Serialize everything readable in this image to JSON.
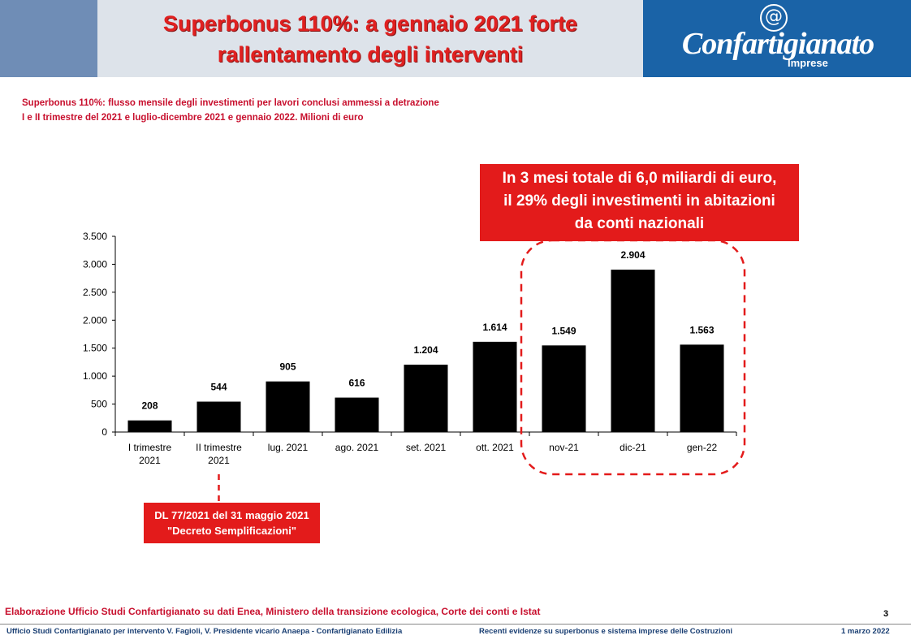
{
  "header": {
    "title_line1": "Superbonus 110%: a gennaio 2021 forte",
    "title_line2": "rallentamento degli interventi",
    "logo_symbol": "@",
    "logo_name": "Confartigianato",
    "logo_sub": "Imprese"
  },
  "subtitle": {
    "line1": "Superbonus 110%: flusso mensile degli investimenti per lavori conclusi ammessi a detrazione",
    "line2": "I e II trimestre del 2021 e luglio-dicembre 2021 e gennaio 2022. Milioni di euro"
  },
  "callout": {
    "line1": "In 3 mesi totale di 6,0 miliardi di euro,",
    "line2": "il 29% degli investimenti in abitazioni",
    "line3": "da conti nazionali"
  },
  "dl_note": {
    "line1": "DL 77/2021 del 31 maggio 2021",
    "line2": "\"Decreto Semplificazioni\""
  },
  "chart_data": {
    "type": "bar",
    "title": "",
    "xlabel": "",
    "ylabel": "",
    "categories": [
      [
        "I trimestre",
        "2021"
      ],
      [
        "II trimestre",
        "2021"
      ],
      [
        "lug. 2021"
      ],
      [
        "ago. 2021"
      ],
      [
        "set. 2021"
      ],
      [
        "ott. 2021"
      ],
      [
        "nov-21"
      ],
      [
        "dic-21"
      ],
      [
        "gen-22"
      ]
    ],
    "values": [
      208,
      544,
      905,
      616,
      1204,
      1614,
      1549,
      2904,
      1563
    ],
    "value_labels": [
      "208",
      "544",
      "905",
      "616",
      "1.204",
      "1.614",
      "1.549",
      "2.904",
      "1.563"
    ],
    "ylim": [
      0,
      3500
    ],
    "yticks": [
      0,
      500,
      1000,
      1500,
      2000,
      2500,
      3000,
      3500
    ],
    "ytick_labels": [
      "0",
      "500",
      "1.000",
      "1.500",
      "2.000",
      "2.500",
      "3.000",
      "3.500"
    ],
    "bar_color": "#000000",
    "highlight_color": "#e31b1b",
    "grid": false
  },
  "footer": {
    "source": "Elaborazione Ufficio Studi Confartigianato su dati Enea, Ministero della transizione ecologica, Corte dei conti e Istat",
    "page_number": "3",
    "left": "Ufficio Studi Confartigianato per intervento V. Fagioli, V. Presidente vicario Anaepa - Confartigianato Edilizia",
    "middle": "Recenti evidenze su superbonus e sistema imprese delle Costruzioni",
    "right": "1 marzo 2022"
  }
}
